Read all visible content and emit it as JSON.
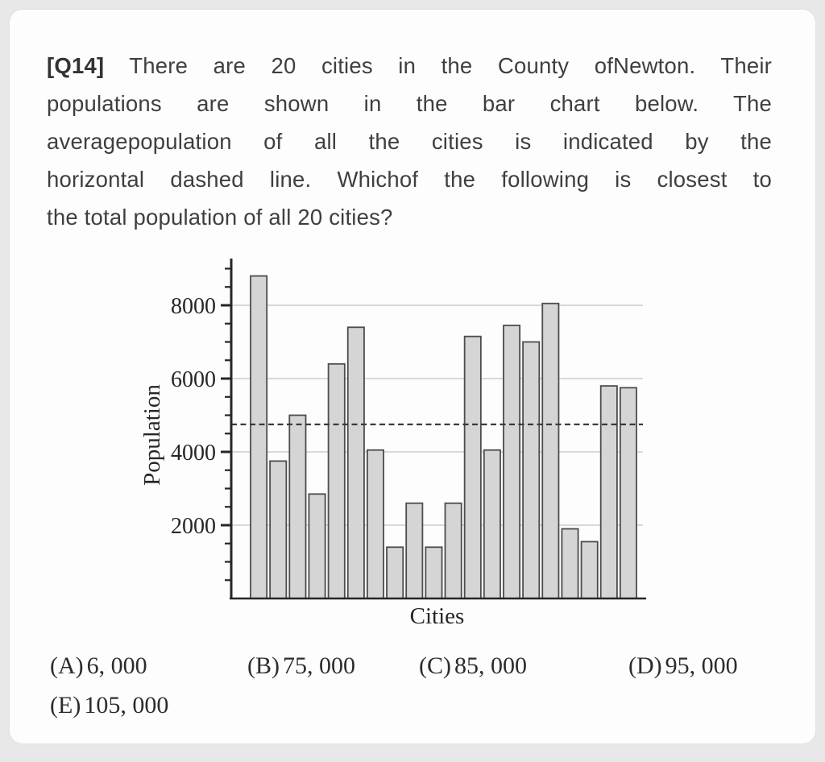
{
  "page": {
    "background_color": "#e8e8e8",
    "card_color": "#fdfdfd"
  },
  "question": {
    "number": "[Q14]",
    "lines": [
      " There are 20 cities in the County ofNewton. Their",
      "populations are shown in the bar chart below. The",
      "averagepopulation of all the cities is indicated by the",
      "horizontal dashed line. Whichof the following is closest to",
      "the total population of all 20 cities?"
    ]
  },
  "chart_data": {
    "type": "bar",
    "title": "",
    "xlabel": "Cities",
    "ylabel": "Population",
    "values": [
      8800,
      3750,
      5000,
      2850,
      6400,
      7400,
      4050,
      1400,
      2600,
      1400,
      2600,
      7150,
      4050,
      7450,
      7000,
      8050,
      1900,
      1550,
      5800,
      5750
    ],
    "n_bars": 20,
    "average_line": {
      "value": 4750,
      "style": "dashed",
      "color": "#3a3a3a"
    },
    "ytick_labels": [
      "2000",
      "4000",
      "6000",
      "8000"
    ],
    "yticks_labeled": [
      2000,
      4000,
      6000,
      8000
    ],
    "ytick_minor_step": 500,
    "ytick_max": 9000,
    "ylim": [
      0,
      9300
    ],
    "grid": true,
    "legend": "none",
    "bar_fill": "#d5d5d5",
    "bar_border": "#4c4c4c",
    "gridline_color": "#c3c3c3",
    "axis_color": "#262626",
    "label_color": "#262626"
  },
  "options": [
    {
      "label": "(A)",
      "value": "6, 000"
    },
    {
      "label": "(B)",
      "value": "75, 000"
    },
    {
      "label": "(C)",
      "value": "85, 000"
    },
    {
      "label": "(D)",
      "value": "95, 000"
    },
    {
      "label": "(E)",
      "value": "105, 000"
    }
  ]
}
